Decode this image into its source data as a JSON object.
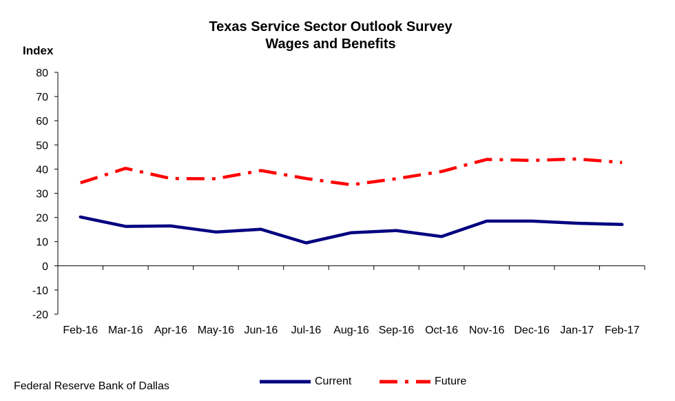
{
  "chart_data": {
    "type": "line",
    "title": "Texas Service Sector Outlook Survey",
    "subtitle": "Wages and Benefits",
    "ylabel": "Index",
    "xlabel": "",
    "ylim": [
      -20,
      80
    ],
    "yticks": [
      80,
      70,
      60,
      50,
      40,
      30,
      20,
      10,
      0,
      -10,
      -20
    ],
    "grid": false,
    "legend_position": "bottom",
    "categories": [
      "Feb-16",
      "Mar-16",
      "Apr-16",
      "May-16",
      "Jun-16",
      "Jul-16",
      "Aug-16",
      "Sep-16",
      "Oct-16",
      "Nov-16",
      "Dec-16",
      "Jan-17",
      "Feb-17"
    ],
    "series": [
      {
        "name": "Current",
        "color": "#000080",
        "style": "solid",
        "values": [
          20.2,
          16.3,
          16.5,
          14.0,
          15.1,
          9.5,
          13.7,
          14.6,
          12.1,
          18.5,
          18.5,
          17.6,
          17.1
        ]
      },
      {
        "name": "Future",
        "color": "#ff0000",
        "style": "dash-dot",
        "values": [
          34.3,
          40.3,
          36.1,
          36.0,
          39.4,
          36.1,
          33.5,
          36.0,
          39.0,
          44.0,
          43.6,
          44.2,
          42.7
        ]
      }
    ]
  },
  "source": "Federal Reserve Bank of Dallas"
}
